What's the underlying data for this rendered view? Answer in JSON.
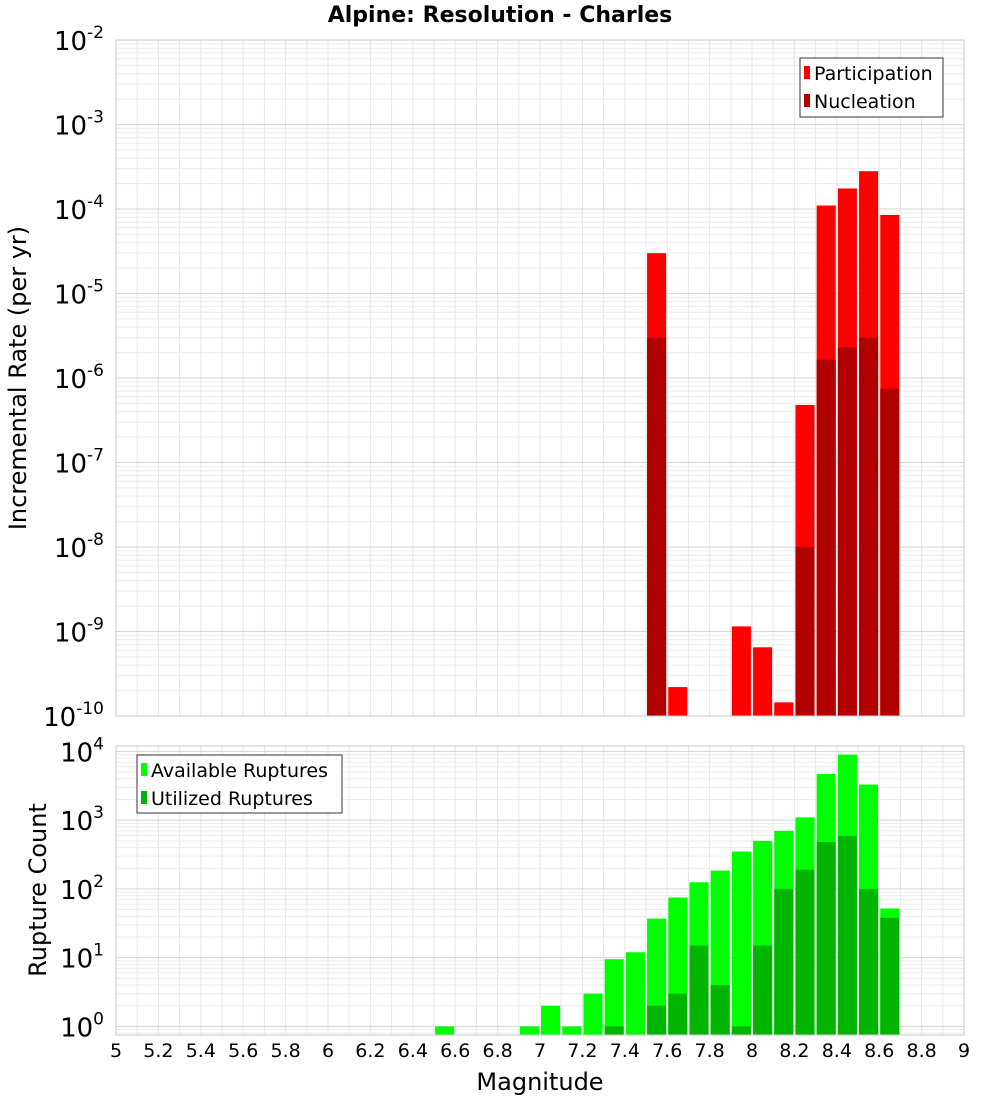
{
  "title": "Alpine: Resolution - Charles",
  "chart_data": [
    {
      "type": "bar",
      "ylabel": "Incremental Rate (per yr)",
      "y_scale": "log",
      "ylim": [
        1e-10,
        0.01
      ],
      "xlim": [
        5,
        9
      ],
      "y_tick_exponents": [
        "-2",
        "-3",
        "-4",
        "-5",
        "-6",
        "-7",
        "-8",
        "-9",
        "-10"
      ],
      "grid": true,
      "legend_position": "top-right",
      "series": [
        {
          "name": "Participation",
          "color": "#ff0000",
          "points": [
            {
              "x": 7.55,
              "y": 3e-05
            },
            {
              "x": 7.65,
              "y": 2.2e-10
            },
            {
              "x": 7.95,
              "y": 1.15e-09
            },
            {
              "x": 8.05,
              "y": 6.5e-10
            },
            {
              "x": 8.15,
              "y": 1.45e-10
            },
            {
              "x": 8.25,
              "y": 4.8e-07
            },
            {
              "x": 8.35,
              "y": 0.00011
            },
            {
              "x": 8.45,
              "y": 0.000175
            },
            {
              "x": 8.55,
              "y": 0.00028
            },
            {
              "x": 8.65,
              "y": 8.5e-05
            }
          ]
        },
        {
          "name": "Nucleation",
          "color": "#b00000",
          "points": [
            {
              "x": 7.55,
              "y": 3e-06
            },
            {
              "x": 8.25,
              "y": 1e-08
            },
            {
              "x": 8.35,
              "y": 1.65e-06
            },
            {
              "x": 8.45,
              "y": 2.3e-06
            },
            {
              "x": 8.55,
              "y": 3e-06
            },
            {
              "x": 8.65,
              "y": 7.5e-07
            }
          ]
        }
      ]
    },
    {
      "type": "bar",
      "ylabel": "Rupture Count",
      "xlabel": "Magnitude",
      "y_scale": "log",
      "ylim": [
        0.75,
        12000
      ],
      "xlim": [
        5,
        9
      ],
      "x_ticks": [
        "5",
        "5.2",
        "5.4",
        "5.6",
        "5.8",
        "6",
        "6.2",
        "6.4",
        "6.6",
        "6.8",
        "7",
        "7.2",
        "7.4",
        "7.6",
        "7.8",
        "8",
        "8.2",
        "8.4",
        "8.6",
        "8.8",
        "9"
      ],
      "y_tick_exponents": [
        "4",
        "3",
        "2",
        "1",
        "0"
      ],
      "grid": true,
      "legend_position": "top-left",
      "series": [
        {
          "name": "Available Ruptures",
          "color": "#00ff00",
          "points": [
            {
              "x": 6.55,
              "y": 1
            },
            {
              "x": 6.95,
              "y": 1
            },
            {
              "x": 7.05,
              "y": 2
            },
            {
              "x": 7.15,
              "y": 1
            },
            {
              "x": 7.25,
              "y": 3
            },
            {
              "x": 7.35,
              "y": 9.5
            },
            {
              "x": 7.45,
              "y": 12
            },
            {
              "x": 7.55,
              "y": 37
            },
            {
              "x": 7.65,
              "y": 75
            },
            {
              "x": 7.75,
              "y": 125
            },
            {
              "x": 7.85,
              "y": 185
            },
            {
              "x": 7.95,
              "y": 350
            },
            {
              "x": 8.05,
              "y": 500
            },
            {
              "x": 8.15,
              "y": 700
            },
            {
              "x": 8.25,
              "y": 1100
            },
            {
              "x": 8.35,
              "y": 4700
            },
            {
              "x": 8.45,
              "y": 9000
            },
            {
              "x": 8.55,
              "y": 3300
            },
            {
              "x": 8.65,
              "y": 52
            }
          ]
        },
        {
          "name": "Utilized Ruptures",
          "color": "#00b400",
          "points": [
            {
              "x": 7.35,
              "y": 1
            },
            {
              "x": 7.55,
              "y": 2
            },
            {
              "x": 7.65,
              "y": 3
            },
            {
              "x": 7.75,
              "y": 15
            },
            {
              "x": 7.85,
              "y": 4
            },
            {
              "x": 7.95,
              "y": 1
            },
            {
              "x": 8.05,
              "y": 15
            },
            {
              "x": 8.15,
              "y": 100
            },
            {
              "x": 8.25,
              "y": 190
            },
            {
              "x": 8.35,
              "y": 480
            },
            {
              "x": 8.45,
              "y": 590
            },
            {
              "x": 8.55,
              "y": 100
            },
            {
              "x": 8.65,
              "y": 38
            }
          ]
        }
      ]
    }
  ]
}
